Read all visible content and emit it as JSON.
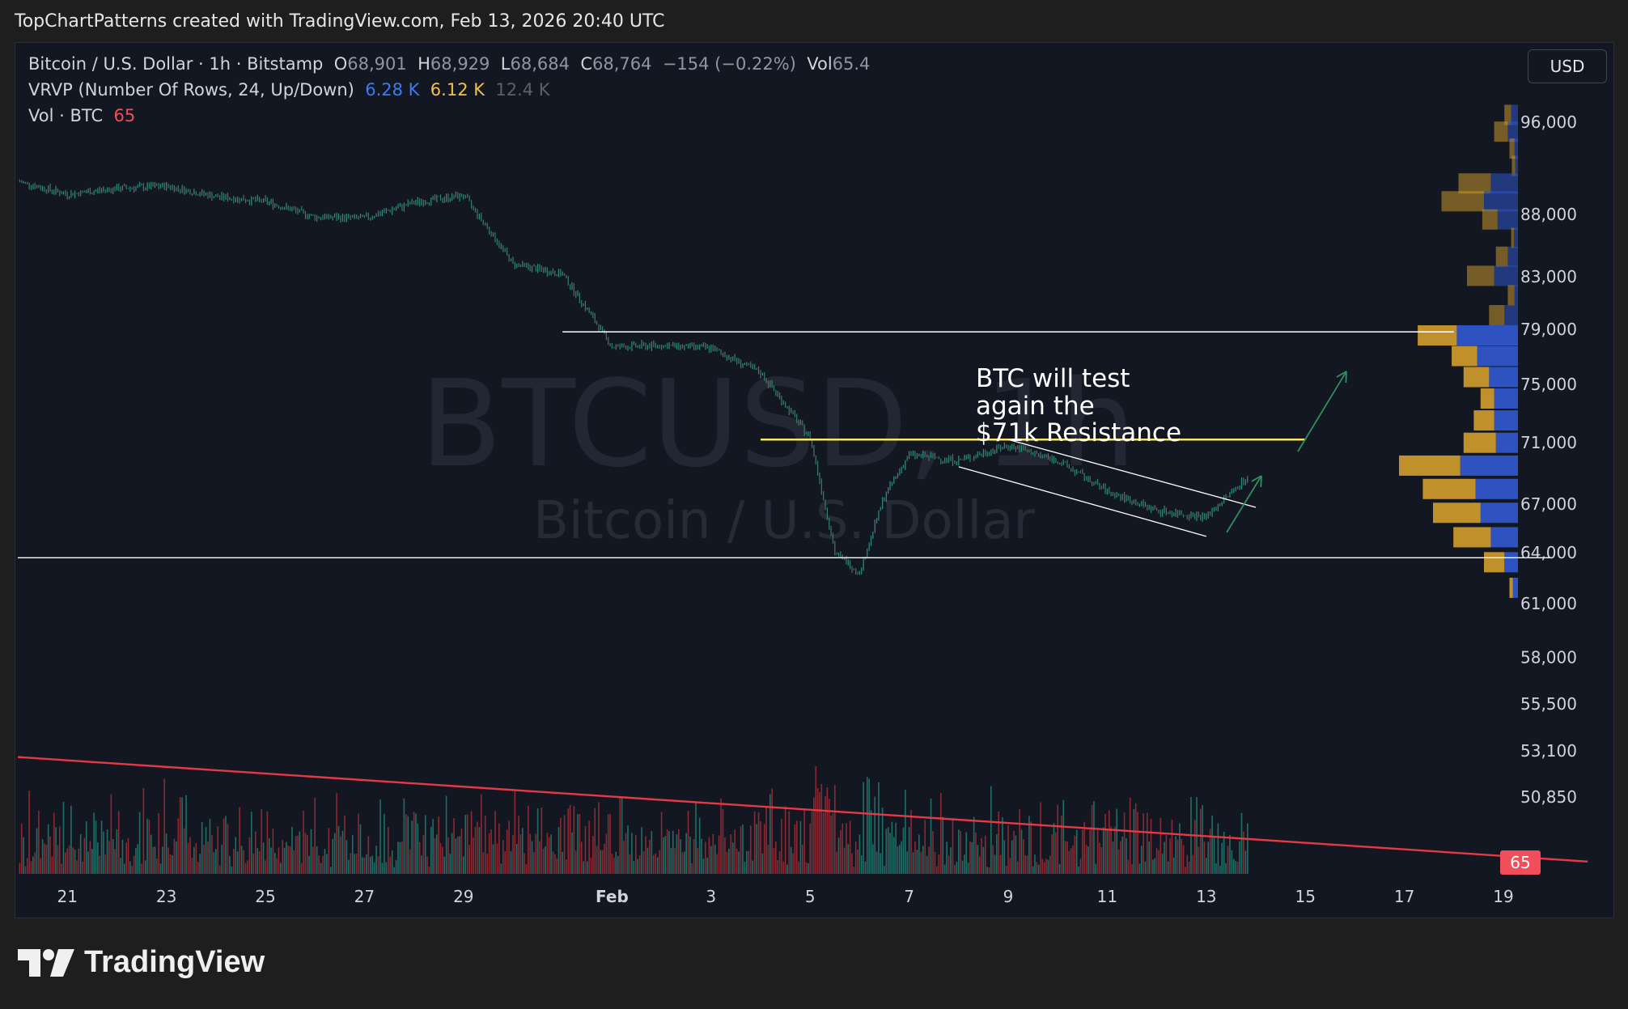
{
  "caption": "TopChartPatterns created with TradingView.com, Feb 13, 2026 20:40 UTC",
  "legend": {
    "symbol": "Bitcoin / U.S. Dollar · 1h · Bitstamp",
    "open_label": "O",
    "open": "68,901",
    "high_label": "H",
    "high": "68,929",
    "low_label": "L",
    "low": "68,684",
    "close_label": "C",
    "close": "68,764",
    "change": "−154 (−0.22%)",
    "vol_label": "Vol",
    "vol": "65.4",
    "vrvp_label": "VRVP (Number Of Rows, 24, Up/Down)",
    "vrvp_up": "6.28 K",
    "vrvp_down": "6.12 K",
    "vrvp_total": "12.4 K",
    "vol_ind_label": "Vol · BTC",
    "vol_ind_value": "65"
  },
  "currency_button": "USD",
  "watermark": {
    "ticker": "BTCUSD, 1h",
    "name": "Bitcoin / U.S. Dollar"
  },
  "annotation": {
    "line1": "BTC will test",
    "line2": "again the",
    "line3": "$71k Resistance"
  },
  "brand": "TradingView",
  "colors": {
    "background": "#131722",
    "candles": "#2f8f7e",
    "resistance": "#f5e663",
    "trend": "#e53945",
    "vp_up": "#2f55c8",
    "vp_down": "#c9982c",
    "vol_up": "#1f6f67",
    "vol_down": "#8b2a33"
  },
  "chart_data": {
    "type": "candlestick",
    "symbol": "BTCUSD",
    "timeframe": "1h",
    "x_ticks": [
      "21",
      "23",
      "25",
      "27",
      "29",
      "Feb",
      "3",
      "5",
      "7",
      "9",
      "11",
      "13",
      "15",
      "17",
      "19"
    ],
    "y_ticks": [
      "96,000",
      "88,000",
      "83,000",
      "79,000",
      "75,000",
      "71,000",
      "67,000",
      "64,000",
      "61,000",
      "58,000",
      "55,500",
      "53,100",
      "50,850"
    ],
    "y_scale": "log",
    "ylim": [
      48000,
      99000
    ],
    "close_series": [
      {
        "date": "Jan 20",
        "close": 90800
      },
      {
        "date": "Jan 21",
        "close": 89700
      },
      {
        "date": "Jan 22",
        "close": 90200
      },
      {
        "date": "Jan 23",
        "close": 90400
      },
      {
        "date": "Jan 24",
        "close": 89500
      },
      {
        "date": "Jan 25",
        "close": 89100
      },
      {
        "date": "Jan 26",
        "close": 87800
      },
      {
        "date": "Jan 27",
        "close": 87700
      },
      {
        "date": "Jan 28",
        "close": 89000
      },
      {
        "date": "Jan 29",
        "close": 89600
      },
      {
        "date": "Jan 30",
        "close": 84000
      },
      {
        "date": "Jan 31",
        "close": 83200
      },
      {
        "date": "Feb 1",
        "close": 77700
      },
      {
        "date": "Feb 2",
        "close": 77800
      },
      {
        "date": "Feb 3",
        "close": 77600
      },
      {
        "date": "Feb 4",
        "close": 75800
      },
      {
        "date": "Feb 5",
        "close": 71300
      },
      {
        "date": "Feb 5 12h",
        "close": 64000
      },
      {
        "date": "Feb 6",
        "close": 62800
      },
      {
        "date": "Feb 6 12h",
        "close": 67500
      },
      {
        "date": "Feb 7",
        "close": 70200
      },
      {
        "date": "Feb 8",
        "close": 69800
      },
      {
        "date": "Feb 9",
        "close": 70800
      },
      {
        "date": "Feb 10",
        "close": 69800
      },
      {
        "date": "Feb 11",
        "close": 67800
      },
      {
        "date": "Feb 12",
        "close": 66600
      },
      {
        "date": "Feb 13",
        "close": 66200
      },
      {
        "date": "Feb 13 20h",
        "close": 68764
      }
    ],
    "horizontal_levels": [
      {
        "price": 78800,
        "color": "#ffffff",
        "from": "Jan 31",
        "to": "Feb 18"
      },
      {
        "price": 71200,
        "color": "#f5e663",
        "from": "Feb 4",
        "to": "Feb 15"
      },
      {
        "price": 63700,
        "color": "#ffffff",
        "from": "Jan 20",
        "to": "Feb 20"
      }
    ],
    "channel": {
      "upper": [
        {
          "date": "Feb 9",
          "price": 71200
        },
        {
          "date": "Feb 14",
          "price": 66800
        }
      ],
      "lower": [
        {
          "date": "Feb 8",
          "price": 69400
        },
        {
          "date": "Feb 13",
          "price": 65000
        }
      ]
    },
    "volume_profile": {
      "price_levels": [
        96000,
        94500,
        93000,
        91500,
        90000,
        88500,
        87000,
        85500,
        84000,
        82500,
        81000,
        79500,
        78000,
        76500,
        75000,
        73500,
        72000,
        70500,
        69000,
        67500,
        66000,
        64500,
        63000,
        61500
      ],
      "up": [
        20,
        30,
        10,
        8,
        80,
        100,
        60,
        12,
        30,
        70,
        10,
        40,
        180,
        120,
        85,
        70,
        70,
        65,
        170,
        125,
        110,
        80,
        40,
        15
      ],
      "down": [
        20,
        40,
        15,
        10,
        95,
        125,
        45,
        8,
        35,
        80,
        20,
        45,
        115,
        75,
        75,
        40,
        60,
        95,
        180,
        155,
        140,
        110,
        60,
        10
      ]
    },
    "volume": {
      "last": 65,
      "trendline": [
        {
          "date": "Jan 20",
          "value": 380
        },
        {
          "date": "Feb 20",
          "value": 40
        }
      ]
    }
  }
}
